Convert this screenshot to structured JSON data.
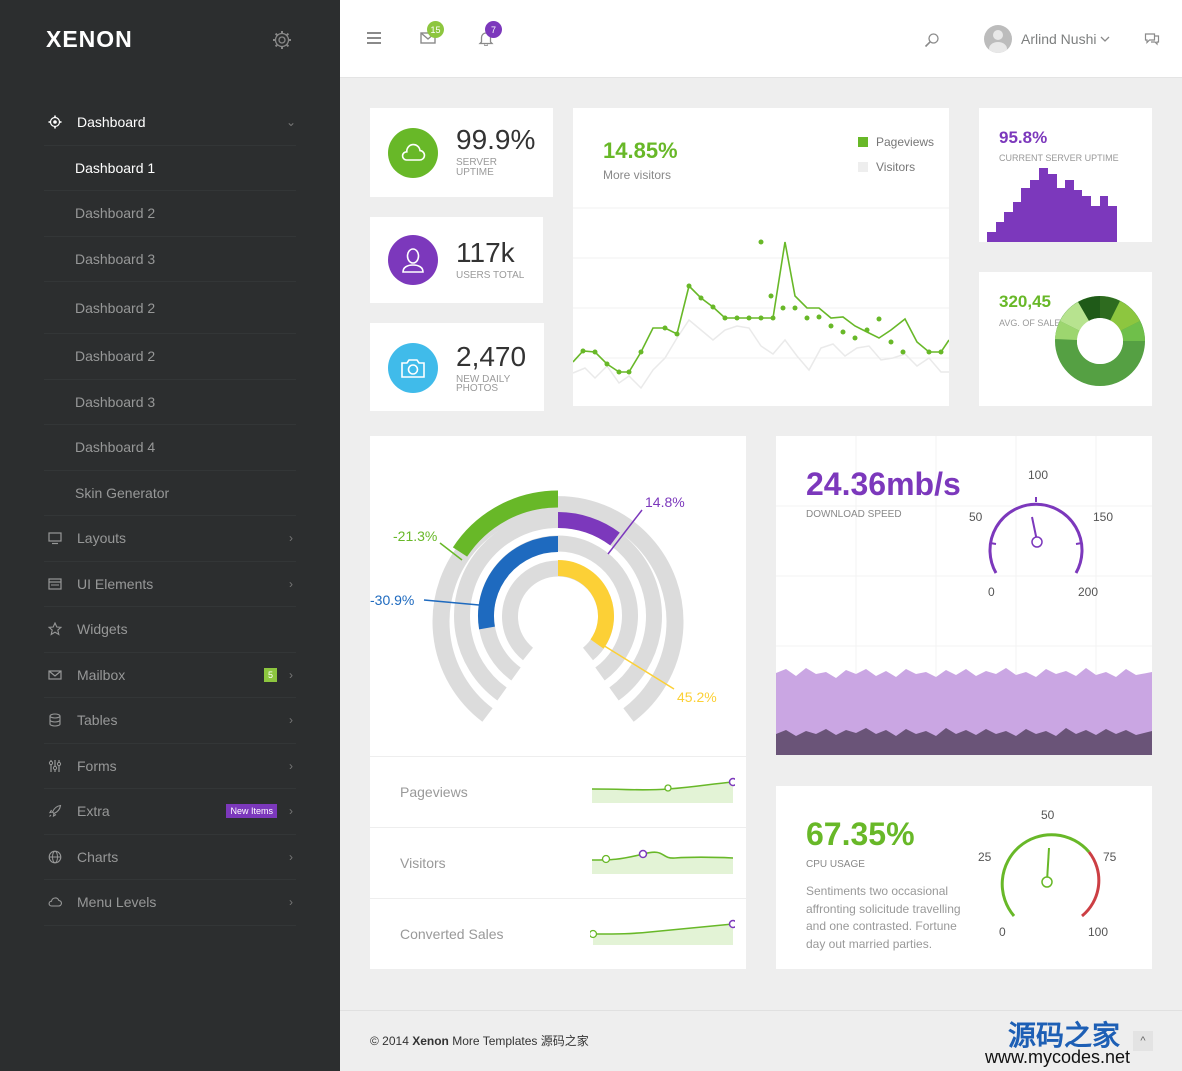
{
  "brand": {
    "logo": "XENON"
  },
  "sidebar": {
    "items": [
      {
        "label": "Dashboard",
        "icon": "gear-icon",
        "arrow": "⌄"
      },
      {
        "label": "Layouts",
        "icon": "monitor-icon",
        "arrow": "›"
      },
      {
        "label": "UI Elements",
        "icon": "window-icon",
        "arrow": "›"
      },
      {
        "label": "Widgets",
        "icon": "star-icon",
        "arrow": ""
      },
      {
        "label": "Mailbox",
        "icon": "envelope-icon",
        "arrow": "›",
        "badge": "5"
      },
      {
        "label": "Tables",
        "icon": "database-icon",
        "arrow": "›"
      },
      {
        "label": "Forms",
        "icon": "sliders-icon",
        "arrow": "›"
      },
      {
        "label": "Extra",
        "icon": "rocket-icon",
        "arrow": "›",
        "badge": "New Items"
      },
      {
        "label": "Charts",
        "icon": "globe-icon",
        "arrow": "›"
      },
      {
        "label": "Menu Levels",
        "icon": "cloud-icon",
        "arrow": "›"
      }
    ],
    "subitems": [
      "Dashboard 1",
      "Dashboard 2",
      "Dashboard 3",
      "Dashboard 2",
      "Dashboard 2",
      "Dashboard 3",
      "Dashboard 4",
      "Skin Generator"
    ]
  },
  "topbar": {
    "mail_count": "15",
    "notif_count": "7",
    "user_name": "Arlind Nushi"
  },
  "stats": {
    "uptime": {
      "value": "99.9%",
      "label1": "SERVER",
      "label2": "UPTIME"
    },
    "users": {
      "value": "117k",
      "label": "USERS TOTAL"
    },
    "photos": {
      "value": "2,470",
      "label1": "NEW DAILY",
      "label2": "PHOTOS"
    }
  },
  "visitors_chart": {
    "headline": "14.85%",
    "sub": "More visitors",
    "legend": [
      "Pageviews",
      "Visitors"
    ],
    "colors": {
      "pageviews": "#68b828",
      "visitors": "#e5e5e5"
    }
  },
  "server_uptime": {
    "value": "95.8%",
    "label": "CURRENT SERVER UPTIME"
  },
  "sales": {
    "value": "320,45",
    "label": "AVG. OF SALES"
  },
  "radial": {
    "labels": [
      "14.8%",
      "-21.3%",
      "-30.9%",
      "45.2%"
    ]
  },
  "sparklines": [
    "Pageviews",
    "Visitors",
    "Converted Sales"
  ],
  "download": {
    "value": "24.36mb/s",
    "label": "DOWNLOAD SPEED",
    "ticks": [
      "0",
      "50",
      "100",
      "150",
      "200"
    ]
  },
  "cpu": {
    "value": "67.35%",
    "label": "CPU USAGE",
    "text": "Sentiments two occasional affronting solicitude travelling and one contrasted. Fortune day out married parties.",
    "ticks": [
      "0",
      "25",
      "50",
      "75",
      "100"
    ]
  },
  "footer": {
    "copyright": "© 2014",
    "brand": "Xenon",
    "rest": "More Templates 源码之家"
  },
  "watermark": {
    "line1": "源码之家",
    "line2": "www.mycodes.net"
  },
  "scrolltop": "^"
}
